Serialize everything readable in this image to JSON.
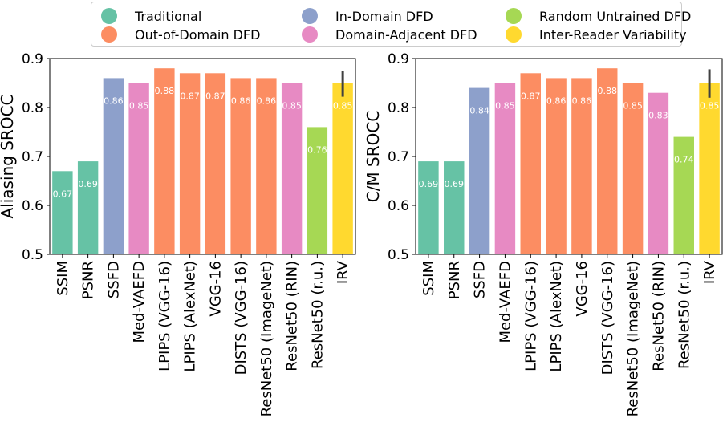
{
  "legend": [
    {
      "label": "Traditional",
      "color": "#66c2a5"
    },
    {
      "label": "Out-of-Domain DFD",
      "color": "#fc8d62"
    },
    {
      "label": "In-Domain DFD",
      "color": "#8da0cb"
    },
    {
      "label": "Domain-Adjacent DFD",
      "color": "#e78ac3"
    },
    {
      "label": "Random Untrained DFD",
      "color": "#a6d854"
    },
    {
      "label": "Inter-Reader Variability",
      "color": "#ffd92f"
    }
  ],
  "chart_data": [
    {
      "type": "bar",
      "ylabel": "Aliasing SROCC",
      "ylim": [
        0.5,
        0.9
      ],
      "yticks": [
        "0.5",
        "0.6",
        "0.7",
        "0.8",
        "0.9"
      ],
      "categories": [
        "SSIM",
        "PSNR",
        "SSFD",
        "Med-VAEFD",
        "LPIPS (VGG-16)",
        "LPIPS (AlexNet)",
        "VGG-16",
        "DISTS (VGG-16)",
        "ResNet50 (ImageNet)",
        "ResNet50 (RIN)",
        "ResNet50 (r.u.)",
        "IRV"
      ],
      "values": [
        0.67,
        0.69,
        0.86,
        0.85,
        0.88,
        0.87,
        0.87,
        0.86,
        0.86,
        0.85,
        0.76,
        0.85
      ],
      "value_labels": [
        "0.67",
        "0.69",
        "0.86",
        "0.85",
        "0.88",
        "0.87",
        "0.87",
        "0.86",
        "0.86",
        "0.85",
        "0.76",
        "0.85"
      ],
      "groups": [
        "Traditional",
        "Traditional",
        "In-Domain DFD",
        "Domain-Adjacent DFD",
        "Out-of-Domain DFD",
        "Out-of-Domain DFD",
        "Out-of-Domain DFD",
        "Out-of-Domain DFD",
        "Out-of-Domain DFD",
        "Domain-Adjacent DFD",
        "Random Untrained DFD",
        "Inter-Reader Variability"
      ],
      "error_bar": {
        "category": "IRV",
        "low": 0.822,
        "high": 0.874
      }
    },
    {
      "type": "bar",
      "ylabel": "C/M SROCC",
      "ylim": [
        0.5,
        0.9
      ],
      "yticks": [
        "0.5",
        "0.6",
        "0.7",
        "0.8",
        "0.9"
      ],
      "categories": [
        "SSIM",
        "PSNR",
        "SSFD",
        "Med-VAEFD",
        "LPIPS (VGG-16)",
        "LPIPS (AlexNet)",
        "VGG-16",
        "DISTS (VGG-16)",
        "ResNet50 (ImageNet)",
        "ResNet50 (RIN)",
        "ResNet50 (r.u.)",
        "IRV"
      ],
      "values": [
        0.69,
        0.69,
        0.84,
        0.85,
        0.87,
        0.86,
        0.86,
        0.88,
        0.85,
        0.83,
        0.74,
        0.85
      ],
      "value_labels": [
        "0.69",
        "0.69",
        "0.84",
        "0.85",
        "0.87",
        "0.86",
        "0.86",
        "0.88",
        "0.85",
        "0.83",
        "0.74",
        "0.85"
      ],
      "groups": [
        "Traditional",
        "Traditional",
        "In-Domain DFD",
        "Domain-Adjacent DFD",
        "Out-of-Domain DFD",
        "Out-of-Domain DFD",
        "Out-of-Domain DFD",
        "Out-of-Domain DFD",
        "Out-of-Domain DFD",
        "Domain-Adjacent DFD",
        "Random Untrained DFD",
        "Inter-Reader Variability"
      ],
      "error_bar": {
        "category": "IRV",
        "low": 0.82,
        "high": 0.878
      }
    }
  ]
}
